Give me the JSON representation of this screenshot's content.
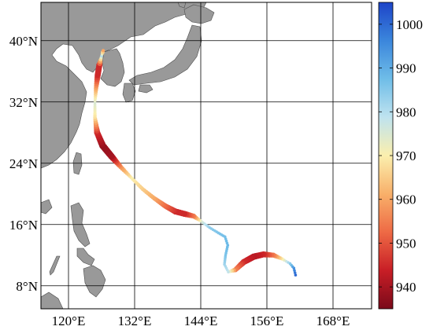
{
  "chart_data": {
    "type": "map",
    "map": {
      "lon_range": [
        115,
        175
      ],
      "lat_range": [
        5,
        45
      ],
      "lon_ticks": [
        {
          "value": 120,
          "label": "120°E"
        },
        {
          "value": 132,
          "label": "132°E"
        },
        {
          "value": 144,
          "label": "144°E"
        },
        {
          "value": 156,
          "label": "156°E"
        },
        {
          "value": 168,
          "label": "168°E"
        }
      ],
      "lat_ticks": [
        {
          "value": 8,
          "label": "8°N"
        },
        {
          "value": 16,
          "label": "16°N"
        },
        {
          "value": 24,
          "label": "24°N"
        },
        {
          "value": 32,
          "label": "32°N"
        },
        {
          "value": 40,
          "label": "40°N"
        }
      ],
      "grid": true,
      "land_color": "#999999",
      "ocean_color": "#ffffff"
    },
    "colorbar": {
      "position": "right",
      "range": [
        935,
        1005
      ],
      "ticks": [
        {
          "value": 940,
          "label": "940"
        },
        {
          "value": 950,
          "label": "950"
        },
        {
          "value": 960,
          "label": "960"
        },
        {
          "value": 970,
          "label": "970"
        },
        {
          "value": 980,
          "label": "980"
        },
        {
          "value": 990,
          "label": "990"
        },
        {
          "value": 1000,
          "label": "1000"
        }
      ],
      "colormap": [
        "#7a0a1a",
        "#c81e26",
        "#ee6a45",
        "#f8b06a",
        "#fbefae",
        "#bfe3ef",
        "#6fbde8",
        "#3b86dc",
        "#1d44c8"
      ]
    },
    "track": {
      "lon": [
        161.2,
        160.9,
        160.2,
        158.8,
        157.2,
        155.4,
        153.6,
        151.8,
        150.3,
        149.0,
        148.3,
        148.5,
        148.9,
        148.4,
        147.2,
        145.6,
        144.1,
        142.7,
        141.0,
        139.4,
        137.6,
        135.6,
        133.5,
        131.4,
        129.5,
        127.8,
        126.2,
        125.2,
        124.8,
        124.8,
        125.0,
        125.3,
        125.6,
        126.0,
        126.3
      ],
      "lat": [
        9.4,
        10.3,
        10.9,
        11.5,
        12.0,
        12.1,
        11.8,
        11.1,
        10.1,
        9.8,
        10.8,
        12.0,
        13.3,
        14.4,
        14.9,
        15.6,
        16.4,
        17.1,
        17.4,
        17.7,
        18.4,
        19.4,
        20.6,
        22.1,
        23.5,
        24.9,
        26.3,
        28.0,
        30.0,
        31.9,
        33.8,
        35.5,
        36.8,
        38.0,
        38.7
      ],
      "pressure": [
        1000,
        995,
        985,
        970,
        955,
        945,
        942,
        945,
        955,
        978,
        982,
        986,
        988,
        987,
        986,
        984,
        975,
        955,
        945,
        945,
        952,
        960,
        965,
        970,
        958,
        940,
        938,
        945,
        968,
        975,
        960,
        945,
        945,
        980,
        960
      ]
    }
  }
}
